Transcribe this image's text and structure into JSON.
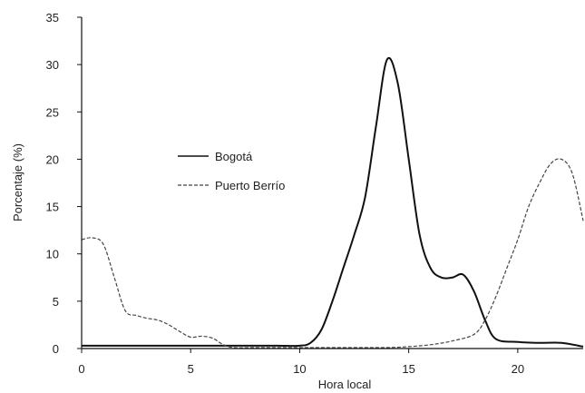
{
  "chart_data": {
    "type": "line",
    "title": "",
    "xlabel": "Hora local",
    "ylabel": "Porcentaje (%)",
    "xlim": [
      0,
      23
    ],
    "ylim": [
      0,
      35
    ],
    "xticks": [
      0,
      5,
      10,
      15,
      20
    ],
    "yticks": [
      0,
      5,
      10,
      15,
      20,
      25,
      30,
      35
    ],
    "grid": false,
    "legend_position": "center-left",
    "series": [
      {
        "name": "Bogotá",
        "style": "solid",
        "color": "#111111",
        "x": [
          0,
          1,
          2,
          3,
          4,
          5,
          6,
          7,
          8,
          9,
          10,
          10.5,
          11,
          11.5,
          12,
          12.5,
          13,
          13.5,
          14,
          14.5,
          15,
          15.5,
          16,
          16.5,
          17,
          17.5,
          18,
          18.5,
          19,
          20,
          21,
          22,
          23
        ],
        "y": [
          0.3,
          0.3,
          0.3,
          0.3,
          0.3,
          0.3,
          0.3,
          0.3,
          0.3,
          0.3,
          0.3,
          0.6,
          2.0,
          5.0,
          8.5,
          12.0,
          16.0,
          23.5,
          30.5,
          28.0,
          20.0,
          12.0,
          8.5,
          7.5,
          7.5,
          7.8,
          6.0,
          3.0,
          1.0,
          0.7,
          0.6,
          0.6,
          0.2
        ]
      },
      {
        "name": "Puerto Berrío",
        "style": "dashed",
        "color": "#444444",
        "x": [
          0,
          0.5,
          1,
          1.5,
          2,
          2.5,
          3,
          3.5,
          4,
          4.5,
          5,
          5.5,
          6,
          6.5,
          7,
          8,
          9,
          10,
          11,
          12,
          13,
          14,
          15,
          16,
          17,
          18,
          18.5,
          19,
          19.5,
          20,
          20.5,
          21,
          21.5,
          22,
          22.5,
          23
        ],
        "y": [
          11.5,
          11.7,
          11.0,
          7.5,
          4.0,
          3.5,
          3.2,
          3.0,
          2.5,
          1.8,
          1.2,
          1.3,
          1.1,
          0.4,
          0.1,
          0.1,
          0.1,
          0.1,
          0.1,
          0.1,
          0.1,
          0.1,
          0.2,
          0.4,
          0.8,
          1.5,
          3.0,
          5.5,
          8.5,
          11.5,
          15.0,
          17.5,
          19.5,
          20.0,
          18.5,
          13.5
        ]
      }
    ]
  }
}
